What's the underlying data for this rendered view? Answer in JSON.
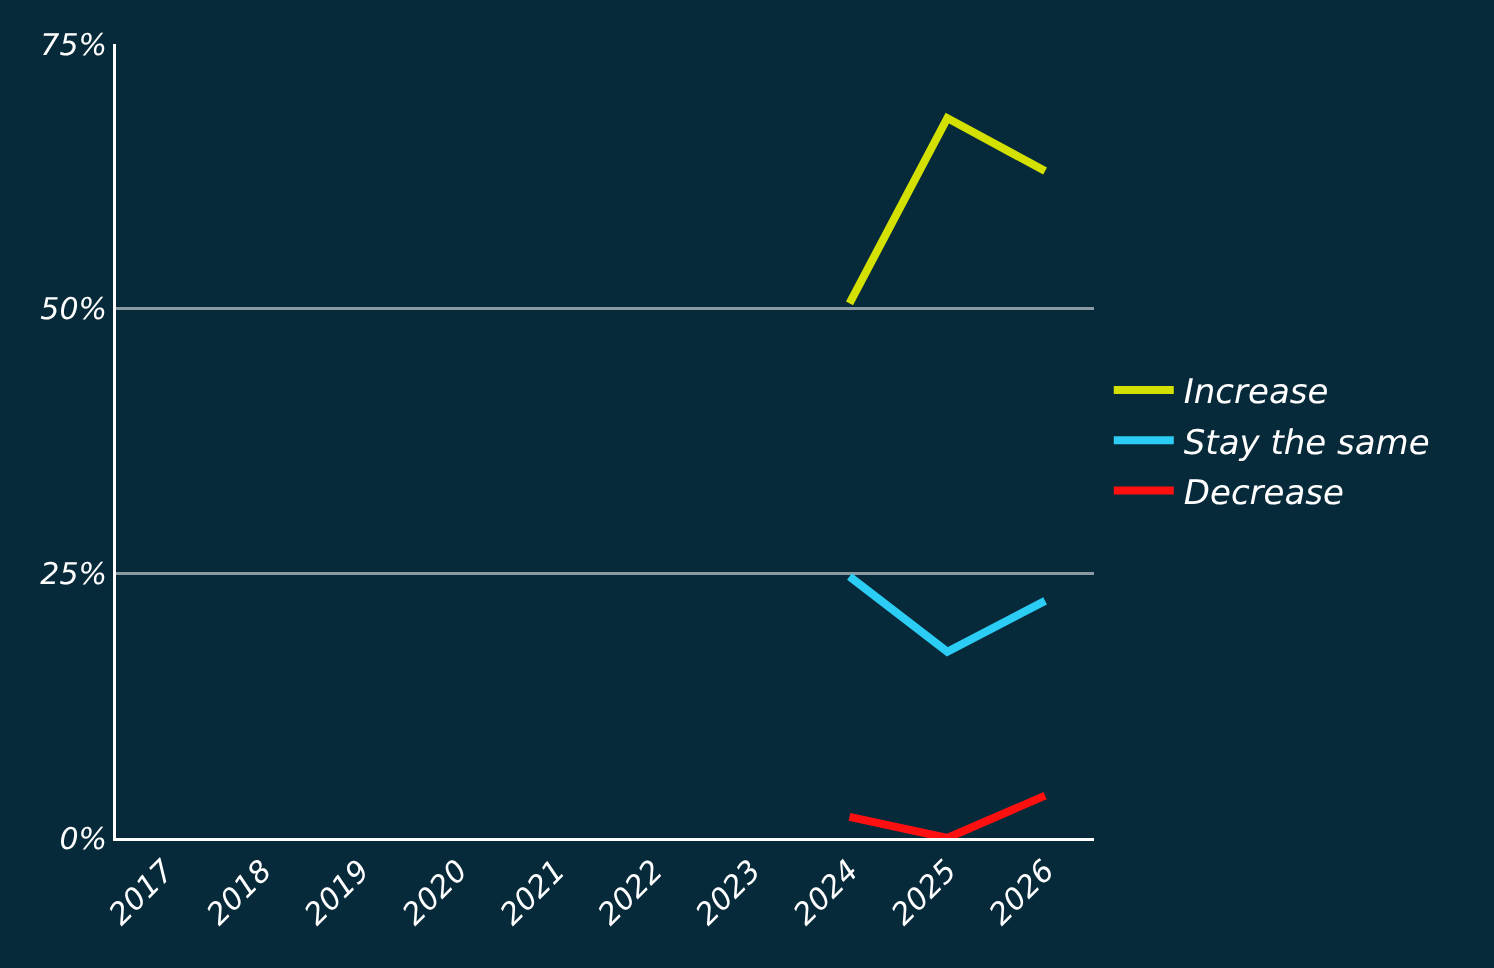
{
  "chart_data": {
    "type": "line",
    "categories": [
      "2017",
      "2018",
      "2019",
      "2020",
      "2021",
      "2022",
      "2023",
      "2024",
      "2025",
      "2026"
    ],
    "series": [
      {
        "name": "Increase",
        "color": "#d4e000",
        "values": [
          null,
          null,
          null,
          null,
          null,
          null,
          null,
          50.5,
          68,
          63
        ]
      },
      {
        "name": "Stay the same",
        "color": "#2ccdf5",
        "values": [
          null,
          null,
          null,
          null,
          null,
          null,
          null,
          24.7,
          17.6,
          22.4
        ]
      },
      {
        "name": "Decrease",
        "color": "#ff1010",
        "values": [
          null,
          null,
          null,
          null,
          null,
          null,
          null,
          2,
          0,
          4
        ]
      }
    ],
    "ylim": [
      0,
      75
    ],
    "yticks": [
      {
        "value": 0,
        "label": "0%"
      },
      {
        "value": 25,
        "label": "25%"
      },
      {
        "value": 50,
        "label": "50%"
      },
      {
        "value": 75,
        "label": "75%"
      }
    ],
    "grid": "y",
    "legend": "right",
    "marker": "none",
    "line_style": "solid"
  }
}
